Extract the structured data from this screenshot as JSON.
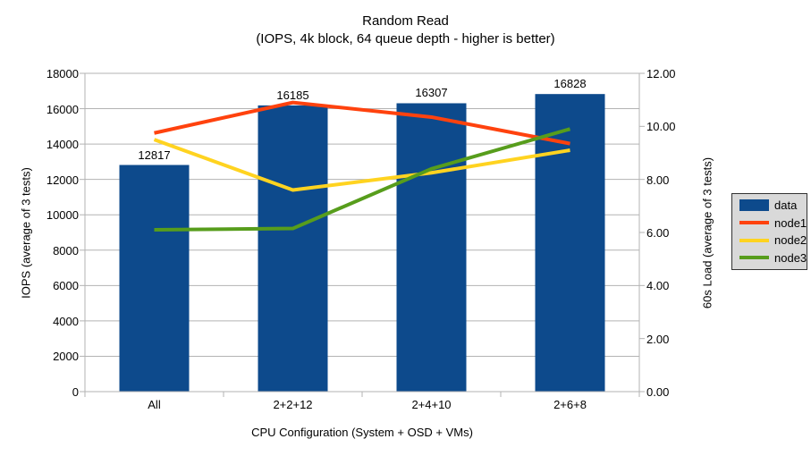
{
  "chart": {
    "title": "Random Read",
    "subtitle": "(IOPS, 4k block, 64 queue depth - higher is better)"
  },
  "chart_data": {
    "type": "bar+line",
    "categories": [
      "All",
      "2+2+12",
      "2+4+10",
      "2+6+8"
    ],
    "bar_series": {
      "name": "data",
      "color": "#0d4a8c",
      "axis": "left",
      "values": [
        12817,
        16185,
        16307,
        16828
      ],
      "data_labels": [
        "12817",
        "16185",
        "16307",
        "16828"
      ]
    },
    "line_series": [
      {
        "name": "node1",
        "color": "#ff420e",
        "axis": "right",
        "values": [
          9.75,
          10.9,
          10.35,
          9.35
        ]
      },
      {
        "name": "node2",
        "color": "#ffd320",
        "axis": "right",
        "values": [
          9.5,
          7.6,
          8.25,
          9.1
        ]
      },
      {
        "name": "node3",
        "color": "#579d1c",
        "axis": "right",
        "values": [
          6.1,
          6.15,
          8.4,
          9.9
        ]
      }
    ],
    "left_axis": {
      "title": "IOPS (average of 3 tests)",
      "min": 0,
      "max": 18000,
      "step": 2000,
      "ticks": [
        0,
        2000,
        4000,
        6000,
        8000,
        10000,
        12000,
        14000,
        16000,
        18000
      ],
      "tick_labels": [
        "0",
        "2000",
        "4000",
        "6000",
        "8000",
        "10000",
        "12000",
        "14000",
        "16000",
        "18000"
      ]
    },
    "right_axis": {
      "title": "60s Load (average of 3 tests)",
      "min": 0,
      "max": 12,
      "step": 2,
      "ticks": [
        0,
        2,
        4,
        6,
        8,
        10,
        12
      ],
      "tick_labels": [
        "0.00",
        "2.00",
        "4.00",
        "6.00",
        "8.00",
        "10.00",
        "12.00"
      ]
    },
    "x_axis": {
      "title": "CPU Configuration (System + OSD + VMs)"
    },
    "legend": {
      "position": "right",
      "entries": [
        {
          "label": "data",
          "marker": "box",
          "color": "#0d4a8c"
        },
        {
          "label": "node1",
          "marker": "line",
          "color": "#ff420e"
        },
        {
          "label": "node2",
          "marker": "line",
          "color": "#ffd320"
        },
        {
          "label": "node3",
          "marker": "line",
          "color": "#579d1c"
        }
      ]
    },
    "grid": {
      "horizontal": true,
      "vertical": false,
      "color": "#b3b3b3"
    }
  }
}
